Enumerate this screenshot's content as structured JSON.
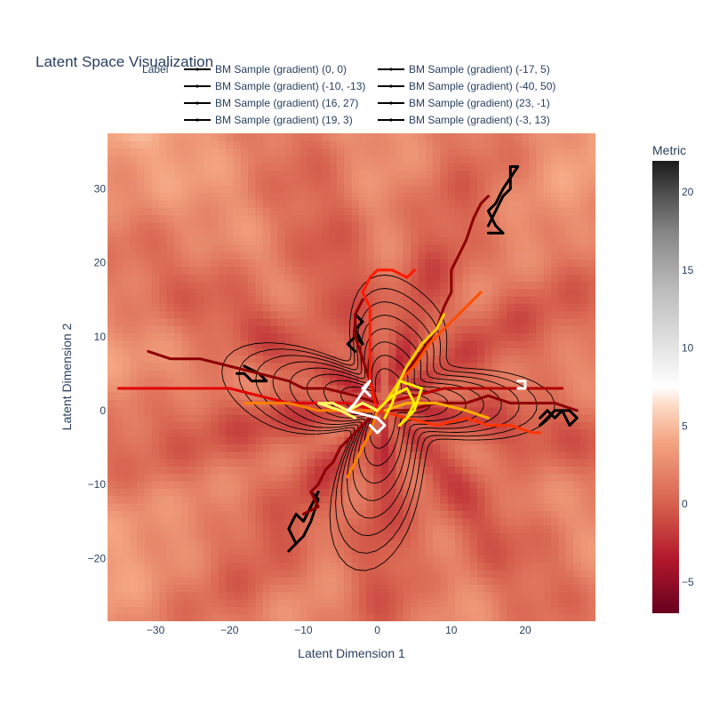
{
  "chart_data": {
    "type": "heatmap",
    "title": "Latent Space Visualization",
    "xlabel": "Latent Dimension 1",
    "ylabel": "Latent Dimension 2",
    "xlim": [
      -36.5,
      29.5
    ],
    "ylim": [
      -28.5,
      37.5
    ],
    "xticks": [
      -30,
      -20,
      -10,
      0,
      10,
      20
    ],
    "yticks": [
      -20,
      -10,
      0,
      10,
      20,
      30
    ],
    "xtick_labels": [
      "−30",
      "−20",
      "−10",
      "0",
      "10",
      "20"
    ],
    "ytick_labels": [
      "−20",
      "−10",
      "0",
      "10",
      "20",
      "30"
    ],
    "legend": {
      "title": "Label",
      "placement": "top",
      "entries": [
        "BM Sample (gradient)  (0, 0)",
        "BM Sample (gradient)  (-17, 5)",
        "BM Sample (gradient)  (-10, -13)",
        "BM Sample (gradient)  (-40, 50)",
        "BM Sample (gradient)  (16, 27)",
        "BM Sample (gradient)  (23, -1)",
        "BM Sample (gradient)  (19, 3)",
        "BM Sample (gradient)  (-3, 13)"
      ]
    },
    "colorbar": {
      "title": "Metric",
      "range": [
        -7,
        22
      ],
      "ticks": [
        -5,
        0,
        5,
        10,
        15,
        20
      ],
      "tick_labels": [
        "−5",
        "0",
        "5",
        "10",
        "15",
        "20"
      ],
      "colorscale": "RdGy reversed (dark red low, white middle, black high)"
    },
    "contours": {
      "color": "#000000",
      "levels": 8,
      "center": [
        1,
        1
      ]
    },
    "paths": [
      {
        "color": "#000000",
        "points": [
          [
            -8,
            -11
          ],
          [
            -9,
            -13
          ],
          [
            -10,
            -15
          ],
          [
            -11,
            -14
          ],
          [
            -12,
            -16
          ],
          [
            -11,
            -18
          ],
          [
            -12,
            -19
          ],
          [
            -10,
            -17
          ],
          [
            -9,
            -15
          ],
          [
            -8,
            -12
          ],
          [
            -9,
            -11
          ]
        ]
      },
      {
        "color": "#000000",
        "points": [
          [
            15,
            25
          ],
          [
            16,
            27
          ],
          [
            17,
            29
          ],
          [
            18,
            30
          ],
          [
            18,
            33
          ],
          [
            19,
            33
          ],
          [
            17,
            30
          ],
          [
            16,
            28
          ],
          [
            15,
            27
          ],
          [
            16,
            25
          ],
          [
            17,
            24
          ],
          [
            15,
            24
          ]
        ]
      },
      {
        "color": "#000000",
        "points": [
          [
            22,
            -1
          ],
          [
            23,
            0
          ],
          [
            24,
            -1
          ],
          [
            25,
            0
          ],
          [
            26,
            -2
          ],
          [
            27,
            -1
          ],
          [
            26,
            0
          ],
          [
            24,
            0
          ],
          [
            22,
            -2
          ]
        ]
      },
      {
        "color": "#000000",
        "points": [
          [
            -19,
            5
          ],
          [
            -18,
            5
          ],
          [
            -17,
            4
          ],
          [
            -16,
            4
          ],
          [
            -15,
            4
          ],
          [
            -16,
            5
          ],
          [
            -18,
            6
          ]
        ]
      },
      {
        "color": "#000000",
        "points": [
          [
            -3,
            13
          ],
          [
            -2,
            12
          ],
          [
            -3,
            11
          ],
          [
            -2,
            9
          ],
          [
            -3,
            10
          ],
          [
            -4,
            9
          ],
          [
            -3,
            8
          ]
        ]
      },
      {
        "color": "#8b0000",
        "points": [
          [
            -1,
            -1
          ],
          [
            -3,
            -3
          ],
          [
            -5,
            -5
          ],
          [
            -6,
            -7
          ],
          [
            -7,
            -8
          ],
          [
            -8,
            -10
          ],
          [
            -9,
            -11
          ],
          [
            -8,
            -13
          ],
          [
            -10,
            -14
          ]
        ]
      },
      {
        "color": "#8b0000",
        "points": [
          [
            1,
            1
          ],
          [
            3,
            4
          ],
          [
            6,
            8
          ],
          [
            8,
            11
          ],
          [
            9,
            14
          ],
          [
            10,
            16
          ],
          [
            10,
            19
          ],
          [
            11,
            21
          ],
          [
            12,
            23
          ],
          [
            13,
            26
          ],
          [
            14,
            28
          ],
          [
            15,
            29
          ]
        ]
      },
      {
        "color": "#8b0000",
        "points": [
          [
            1,
            0
          ],
          [
            4,
            0
          ],
          [
            8,
            1
          ],
          [
            12,
            1
          ],
          [
            15,
            2
          ],
          [
            18,
            1
          ],
          [
            21,
            1
          ],
          [
            24,
            1
          ],
          [
            27,
            0
          ]
        ]
      },
      {
        "color": "#8b0000",
        "points": [
          [
            0,
            1
          ],
          [
            -3,
            2
          ],
          [
            -7,
            3
          ],
          [
            -10,
            3
          ],
          [
            -12,
            4
          ],
          [
            -16,
            5
          ],
          [
            -20,
            6
          ],
          [
            -24,
            7
          ],
          [
            -28,
            7
          ],
          [
            -31,
            8
          ]
        ]
      },
      {
        "color": "#8b0000",
        "points": [
          [
            0,
            1
          ],
          [
            -1,
            4
          ],
          [
            -2,
            7
          ],
          [
            -3,
            10
          ],
          [
            -3,
            13
          ],
          [
            -2,
            15
          ]
        ]
      },
      {
        "color": "#b30000",
        "points": [
          [
            1,
            1
          ],
          [
            5,
            2
          ],
          [
            9,
            3
          ],
          [
            13,
            3
          ],
          [
            16,
            3
          ],
          [
            19,
            3
          ],
          [
            22,
            3
          ],
          [
            25,
            3
          ]
        ]
      },
      {
        "color": "#e00000",
        "points": [
          [
            0,
            0
          ],
          [
            -4,
            1
          ],
          [
            -8,
            1
          ],
          [
            -12,
            1
          ],
          [
            -16,
            2
          ],
          [
            -20,
            3
          ],
          [
            -24,
            3
          ],
          [
            -28,
            3
          ],
          [
            -31,
            3
          ],
          [
            -35,
            3
          ]
        ]
      },
      {
        "color": "#ff1a00",
        "points": [
          [
            0,
            0
          ],
          [
            -1,
            4
          ],
          [
            -1,
            8
          ],
          [
            -1,
            11
          ],
          [
            -1,
            14
          ],
          [
            -2,
            16
          ],
          [
            -1,
            18
          ],
          [
            0,
            19
          ],
          [
            2,
            19
          ],
          [
            4,
            18
          ],
          [
            5,
            19
          ]
        ]
      },
      {
        "color": "#ff3300",
        "points": [
          [
            0,
            0
          ],
          [
            4,
            -1
          ],
          [
            8,
            -2
          ],
          [
            12,
            -1
          ],
          [
            15,
            -2
          ],
          [
            18,
            -2
          ],
          [
            21,
            -3
          ],
          [
            22,
            -3
          ]
        ]
      },
      {
        "color": "#ff4d00",
        "points": [
          [
            1,
            1
          ],
          [
            3,
            4
          ],
          [
            5,
            6
          ],
          [
            7,
            9
          ],
          [
            9,
            11
          ],
          [
            12,
            14
          ],
          [
            14,
            16
          ]
        ]
      },
      {
        "color": "#ff8000",
        "points": [
          [
            0,
            0
          ],
          [
            -4,
            0
          ],
          [
            -8,
            0
          ],
          [
            -12,
            1
          ],
          [
            -15,
            1
          ],
          [
            -18,
            1
          ]
        ]
      },
      {
        "color": "#ff8000",
        "points": [
          [
            0,
            0
          ],
          [
            -1,
            -3
          ],
          [
            -2,
            -5
          ],
          [
            -3,
            -7
          ],
          [
            -4,
            -9
          ]
        ]
      },
      {
        "color": "#ffb000",
        "points": [
          [
            1,
            0
          ],
          [
            4,
            1
          ],
          [
            8,
            1
          ],
          [
            12,
            0
          ],
          [
            15,
            -1
          ]
        ]
      },
      {
        "color": "#ffd000",
        "points": [
          [
            1,
            1
          ],
          [
            3,
            4
          ],
          [
            4,
            6
          ],
          [
            6,
            9
          ],
          [
            8,
            11
          ],
          [
            9,
            13
          ]
        ]
      },
      {
        "color": "#ffef00",
        "points": [
          [
            0,
            0
          ],
          [
            2,
            2
          ],
          [
            4,
            3
          ],
          [
            5,
            1
          ],
          [
            4,
            -1
          ],
          [
            3,
            -2
          ],
          [
            5,
            0
          ],
          [
            6,
            3
          ],
          [
            3,
            4
          ],
          [
            2,
            1
          ],
          [
            1,
            -1
          ]
        ]
      },
      {
        "color": "#ffff66",
        "points": [
          [
            0,
            0
          ],
          [
            -2,
            1
          ],
          [
            -4,
            0
          ],
          [
            -6,
            1
          ],
          [
            -8,
            1
          ],
          [
            -5,
            0
          ],
          [
            -3,
            -1
          ]
        ]
      },
      {
        "color": "#ffffff",
        "points": [
          [
            -1,
            2
          ],
          [
            -2,
            3
          ],
          [
            -1,
            4
          ],
          [
            -3,
            1
          ],
          [
            -4,
            0
          ],
          [
            0,
            -1
          ],
          [
            1,
            -2
          ],
          [
            0,
            -3
          ],
          [
            -1,
            -2
          ]
        ]
      },
      {
        "color": "#ffffff",
        "points": [
          [
            19,
            3
          ],
          [
            20,
            3
          ],
          [
            20,
            4
          ],
          [
            19,
            4
          ]
        ]
      }
    ]
  }
}
